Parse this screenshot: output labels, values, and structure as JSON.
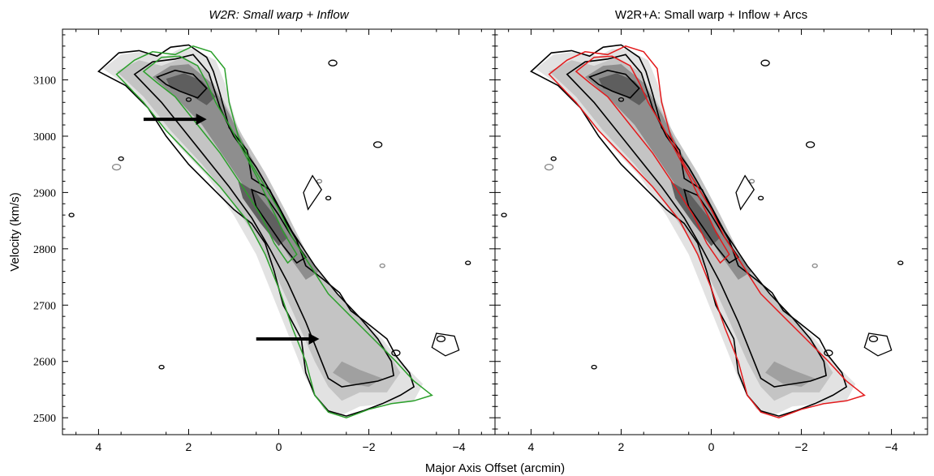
{
  "figure": {
    "xlabel": "Major Axis Offset (arcmin)",
    "ylabel": "Velocity (km/s)"
  },
  "chart_data": [
    {
      "type": "heatmap",
      "title": "W2R: Small warp + Inflow",
      "title_style": "italic",
      "xlabel": "Major Axis Offset (arcmin)",
      "ylabel": "Velocity (km/s)",
      "xlim": [
        4.8,
        -4.8
      ],
      "ylim": [
        2470,
        3190
      ],
      "xticks": [
        4,
        2,
        0,
        -2,
        -4
      ],
      "xtick_labels": [
        "4",
        "2",
        "0",
        "−2",
        "−4"
      ],
      "yticks": [
        2500,
        2600,
        2700,
        2800,
        2900,
        3000,
        3100
      ],
      "ytick_labels": [
        "2500",
        "2600",
        "2700",
        "2800",
        "2900",
        "3000",
        "3100"
      ],
      "grid": false,
      "colormap": "grayscale",
      "data_contour_color": "#000000",
      "model_contour_color": "#2ca02c",
      "annotations": [
        {
          "type": "arrow",
          "from": [
            3.0,
            3030
          ],
          "to": [
            1.6,
            3030
          ]
        },
        {
          "type": "arrow",
          "from": [
            0.5,
            2640
          ],
          "to": [
            -0.9,
            2640
          ]
        }
      ]
    },
    {
      "type": "heatmap",
      "title": "W2R+A: Small warp + Inflow + Arcs",
      "title_style": "normal",
      "xlabel": "Major Axis Offset (arcmin)",
      "xlim": [
        4.8,
        -4.8
      ],
      "ylim": [
        2470,
        3190
      ],
      "xticks": [
        4,
        2,
        0,
        -2,
        -4
      ],
      "xtick_labels": [
        "4",
        "2",
        "0",
        "−2",
        "−4"
      ],
      "yticks": [
        2500,
        2600,
        2700,
        2800,
        2900,
        3000,
        3100
      ],
      "grid": false,
      "colormap": "grayscale",
      "data_contour_color": "#000000",
      "model_contour_color": "#e31a1c",
      "annotations": []
    }
  ]
}
